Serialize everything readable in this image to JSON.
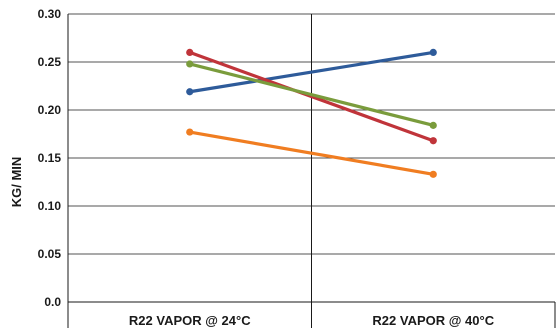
{
  "chart_data": {
    "type": "line",
    "title": "",
    "xlabel": "",
    "ylabel": "KG/ MIN",
    "categories": [
      "R22 VAPOR @ 24°C",
      "R22 VAPOR @ 40°C"
    ],
    "ylim": [
      0.0,
      0.3
    ],
    "yticks": [
      {
        "value": 0.0,
        "label": "0.0"
      },
      {
        "value": 0.05,
        "label": "0.05"
      },
      {
        "value": 0.1,
        "label": "0.10"
      },
      {
        "value": 0.15,
        "label": "0.15"
      },
      {
        "value": 0.2,
        "label": "0.20"
      },
      {
        "value": 0.25,
        "label": "0.25"
      },
      {
        "value": 0.3,
        "label": "0.30"
      }
    ],
    "grid": true,
    "legend": "none",
    "series": [
      {
        "color": "#2e5b9a",
        "values": [
          0.219,
          0.26
        ]
      },
      {
        "color": "#c0343a",
        "values": [
          0.26,
          0.168
        ]
      },
      {
        "color": "#7a9c3c",
        "values": [
          0.248,
          0.184
        ]
      },
      {
        "color": "#f07d21",
        "values": [
          0.177,
          0.133
        ]
      }
    ]
  }
}
